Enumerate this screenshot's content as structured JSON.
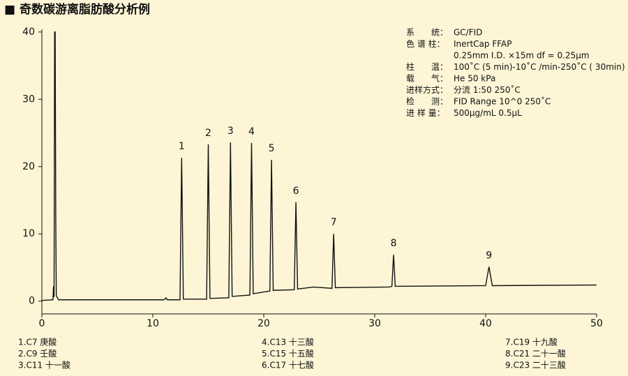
{
  "title": "■ 奇数碳游离脂肪酸分析例",
  "chart_data": {
    "type": "line",
    "x": [
      0,
      1.0,
      1.05,
      1.1,
      1.15,
      1.2,
      1.25,
      1.3,
      1.5,
      11.0,
      11.2,
      11.3,
      12.45,
      12.6,
      12.75,
      14.85,
      15.0,
      15.15,
      16.85,
      17.0,
      17.15,
      18.75,
      18.9,
      19.05,
      20.55,
      20.7,
      20.85,
      22.75,
      22.9,
      23.05,
      24.5,
      26.15,
      26.3,
      26.45,
      31.3,
      31.55,
      31.7,
      31.85,
      40.0,
      40.3,
      40.6,
      50
    ],
    "series": [
      {
        "color": "#111111",
        "values": [
          0.1,
          0.2,
          2.2,
          0.6,
          40,
          40,
          13,
          0.8,
          0.2,
          0.2,
          0.5,
          0.2,
          0.2,
          21.3,
          0.3,
          0.3,
          23.3,
          0.4,
          0.5,
          23.6,
          0.7,
          0.9,
          23.5,
          1.1,
          1.5,
          21.0,
          1.6,
          1.7,
          14.7,
          1.8,
          2.1,
          1.9,
          10.0,
          2.0,
          2.1,
          2.2,
          6.9,
          2.2,
          2.3,
          5.1,
          2.3,
          2.4
        ]
      }
    ],
    "xlim": [
      0,
      50
    ],
    "xticks": [
      0,
      10,
      20,
      30,
      40,
      50
    ],
    "ylim": [
      -1.9,
      40.4
    ],
    "yticks": [
      0,
      10,
      20,
      30,
      40
    ],
    "annotations": [
      {
        "text": "1",
        "x": 12.6,
        "y": 21.3
      },
      {
        "text": "2",
        "x": 15.0,
        "y": 23.3
      },
      {
        "text": "3",
        "x": 17.0,
        "y": 23.6
      },
      {
        "text": "4",
        "x": 18.9,
        "y": 23.5
      },
      {
        "text": "5",
        "x": 20.7,
        "y": 21.0
      },
      {
        "text": "6",
        "x": 22.9,
        "y": 14.7
      },
      {
        "text": "7",
        "x": 26.3,
        "y": 10.0
      },
      {
        "text": "8",
        "x": 31.7,
        "y": 6.9
      },
      {
        "text": "9",
        "x": 40.3,
        "y": 5.1
      }
    ]
  },
  "conditions": [
    {
      "label": "系　　统：",
      "value": "GC/FID"
    },
    {
      "label": "色 谱 柱：",
      "value": "InertCap FFAP"
    },
    {
      "value": "0.25mm I.D. ×15m df = 0.25μm"
    },
    {
      "label": "柱　　温：",
      "value": "100˚C (5 min)-10˚C /min-250˚C ( 30min)"
    },
    {
      "label": "载　　气：",
      "value": "He 50 kPa"
    },
    {
      "label": "进样方式：",
      "value": "分流 1:50 250˚C"
    },
    {
      "label": "检　　测：",
      "value": "FID Range 10^0 250˚C"
    },
    {
      "label": "进 样 量：",
      "value": "500μg/mL 0.5μL"
    }
  ],
  "peak_list": [
    [
      "1.C7 庚酸",
      "2.C9 壬酸",
      "3.C11 十一酸"
    ],
    [
      "4.C13 十三酸",
      "5.C15 十五酸",
      "6.C17 十七酸"
    ],
    [
      "7.C19 十九酸",
      "8.C21 二十一酸",
      "9.C23 二十三酸"
    ]
  ]
}
